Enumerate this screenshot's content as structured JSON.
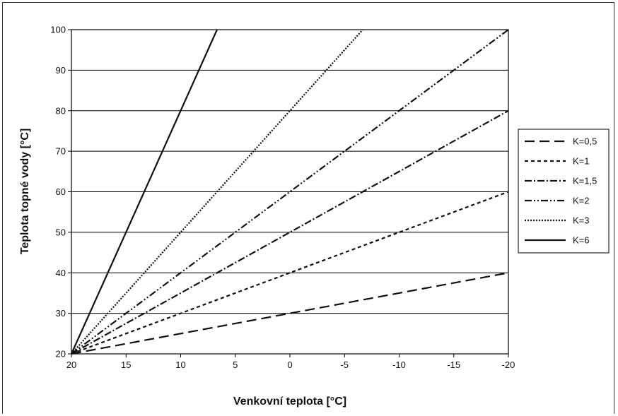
{
  "chart_data": {
    "type": "line",
    "xlabel": "Venkovní teplota [°C]",
    "ylabel": "Teplota topné vody [°C]",
    "xlim": [
      20,
      -20
    ],
    "ylim": [
      20,
      100
    ],
    "x_ticks": [
      "20",
      "15",
      "10",
      "5",
      "0",
      "-5",
      "-10",
      "-15",
      "-20"
    ],
    "y_ticks": [
      "20",
      "30",
      "40",
      "50",
      "60",
      "70",
      "80",
      "90",
      "100"
    ],
    "grid": "horizontal",
    "legend_position": "right",
    "series": [
      {
        "name": "K=0,5",
        "dash": "long-dash",
        "points": [
          [
            20,
            20
          ],
          [
            -20,
            40
          ]
        ]
      },
      {
        "name": "K=1",
        "dash": "short-dash",
        "points": [
          [
            20,
            20
          ],
          [
            -20,
            60
          ]
        ]
      },
      {
        "name": "K=1,5",
        "dash": "dash-dot",
        "points": [
          [
            20,
            20
          ],
          [
            -20,
            80
          ]
        ]
      },
      {
        "name": "K=2",
        "dash": "dash-dot-dot",
        "points": [
          [
            20,
            20
          ],
          [
            -20,
            100
          ]
        ]
      },
      {
        "name": "K=3",
        "dash": "dotted",
        "points": [
          [
            20,
            20
          ],
          [
            -6.67,
            100
          ]
        ]
      },
      {
        "name": "K=6",
        "dash": "solid",
        "points": [
          [
            20,
            20
          ],
          [
            6.67,
            100
          ]
        ]
      }
    ]
  }
}
